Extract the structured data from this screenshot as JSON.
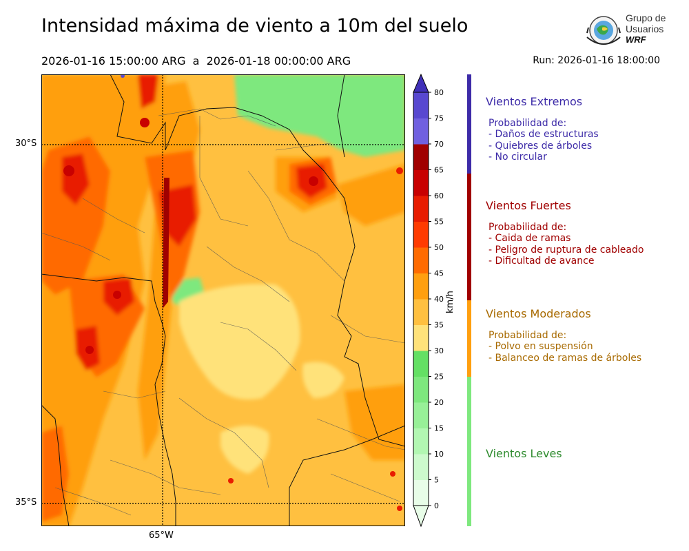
{
  "header": {
    "title": "Intensidad máxima de viento a 10m del suelo",
    "period": "2026-01-16 15:00:00 ARG  a  2026-01-18 00:00:00 ARG",
    "run": "Run: 2026-01-16 18:00:00"
  },
  "logo": {
    "line1": "Grupo de",
    "line2": "Usuarios",
    "line3": "WRF"
  },
  "map": {
    "lat_labels": [
      "30°S",
      "35°S"
    ],
    "lon_labels": [
      "65°W"
    ]
  },
  "colorbar": {
    "unit": "km/h",
    "ticks": [
      "0",
      "5",
      "10",
      "15",
      "20",
      "25",
      "30",
      "35",
      "40",
      "45",
      "50",
      "55",
      "60",
      "65",
      "70",
      "75",
      "80"
    ],
    "colors": [
      "#e8fde8",
      "#cdfacd",
      "#b2f7b2",
      "#98f098",
      "#7ee87e",
      "#64e064",
      "#ffe27a",
      "#ffc040",
      "#ff9f0f",
      "#ff6b00",
      "#ff3b00",
      "#e81c00",
      "#c80000",
      "#a00000",
      "#7060e0",
      "#5848d0",
      "#4030b8"
    ]
  },
  "categories": [
    {
      "name": "Vientos Extremos",
      "color": "#3d2ba8",
      "desc": "Probabilidad de:\n- Daños de estructuras\n- Quiebres de árboles\n- No circular"
    },
    {
      "name": "Vientos Fuertes",
      "color": "#a00000",
      "desc": "Probabilidad de:\n- Caida de ramas\n- Peligro de ruptura de cableado\n- Dificultad de avance"
    },
    {
      "name": "Vientos Moderados",
      "color": "#a86a00",
      "desc": "Probabilidad de:\n- Polvo en suspensión\n- Balanceo de ramas de árboles"
    },
    {
      "name": "Vientos Leves",
      "color": "#2e8b2e",
      "desc": ""
    }
  ]
}
